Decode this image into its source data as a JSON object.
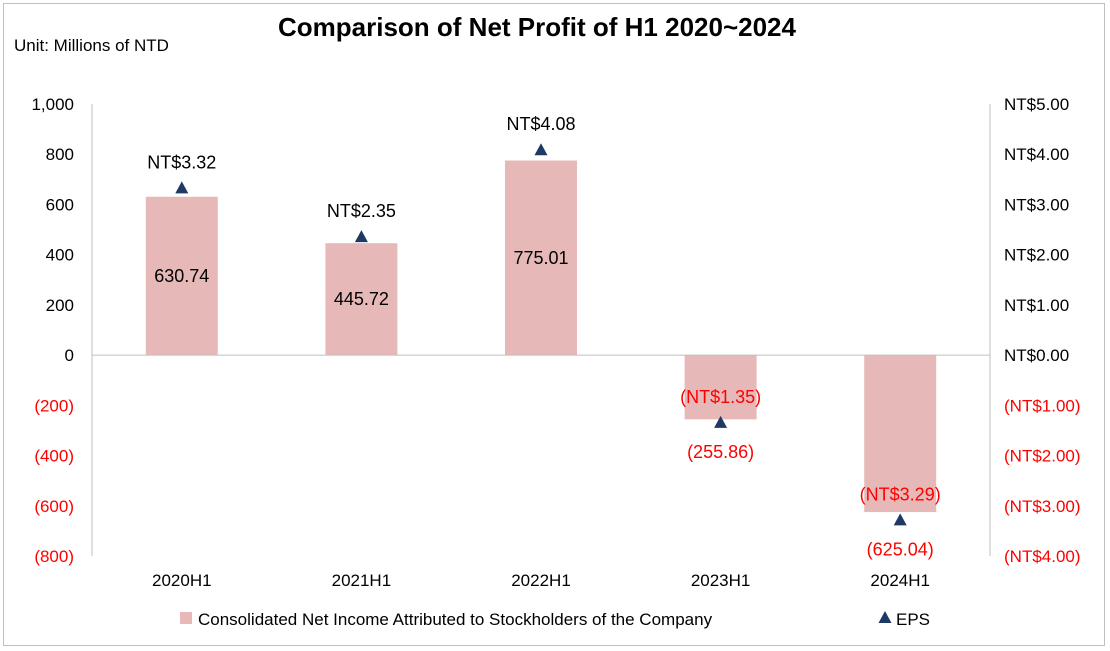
{
  "chart_data": {
    "type": "bar",
    "title": "Comparison of Net Profit of H1 2020~2024",
    "unit_label": "Unit: Millions of NTD",
    "categories": [
      "2020H1",
      "2021H1",
      "2022H1",
      "2023H1",
      "2024H1"
    ],
    "series": [
      {
        "name": "Consolidated Net Income Attributed to Stockholders of the Company",
        "axis": "left",
        "type": "bar",
        "values": [
          630.74,
          445.72,
          775.01,
          -255.86,
          -625.04
        ],
        "labels": [
          "630.74",
          "445.72",
          "775.01",
          "(255.86)",
          "(625.04)"
        ],
        "color": "#e6b9b8"
      },
      {
        "name": "EPS",
        "axis": "right",
        "type": "scatter",
        "marker": "triangle",
        "values": [
          3.32,
          2.35,
          4.08,
          -1.35,
          -3.29
        ],
        "labels": [
          "NT$3.32",
          "NT$2.35",
          "NT$4.08",
          "(NT$1.35)",
          "(NT$3.29)"
        ],
        "color": "#1f3864"
      }
    ],
    "ylim_left": [
      -800,
      1000
    ],
    "ylim_right": [
      -4,
      5
    ],
    "left_ticks": [
      {
        "value": 1000,
        "label": "1,000"
      },
      {
        "value": 800,
        "label": "800"
      },
      {
        "value": 600,
        "label": "600"
      },
      {
        "value": 400,
        "label": "400"
      },
      {
        "value": 200,
        "label": "200"
      },
      {
        "value": 0,
        "label": "0"
      },
      {
        "value": -200,
        "label": "(200)"
      },
      {
        "value": -400,
        "label": "(400)"
      },
      {
        "value": -600,
        "label": "(600)"
      },
      {
        "value": -800,
        "label": "(800)"
      }
    ],
    "right_ticks": [
      {
        "value": 5,
        "label": "NT$5.00"
      },
      {
        "value": 4,
        "label": "NT$4.00"
      },
      {
        "value": 3,
        "label": "NT$3.00"
      },
      {
        "value": 2,
        "label": "NT$2.00"
      },
      {
        "value": 1,
        "label": "NT$1.00"
      },
      {
        "value": 0,
        "label": "NT$0.00"
      },
      {
        "value": -1,
        "label": "(NT$1.00)"
      },
      {
        "value": -2,
        "label": "(NT$2.00)"
      },
      {
        "value": -3,
        "label": "(NT$3.00)"
      },
      {
        "value": -4,
        "label": "(NT$4.00)"
      }
    ],
    "negative_color": "#ff0000",
    "legend_position": "bottom",
    "grid": false
  }
}
